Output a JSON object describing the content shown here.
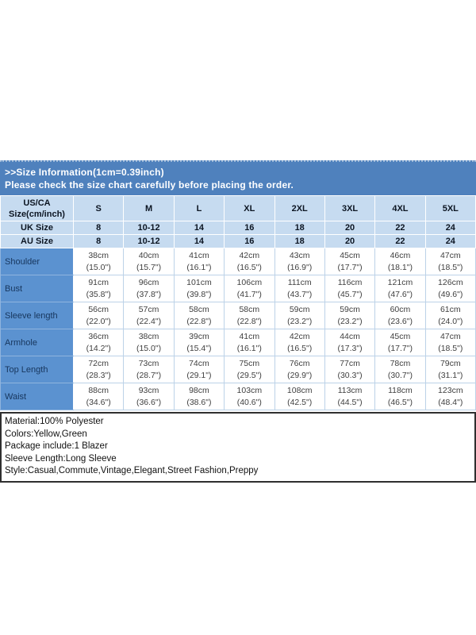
{
  "banner": {
    "title": ">>Size Information(1cm=0.39inch)",
    "subtitle": "Please check the size chart carefully before placing the order."
  },
  "size_table": {
    "corner_line1": "US/CA",
    "corner_line2": "Size(cm/inch)",
    "size_headers": [
      "S",
      "M",
      "L",
      "XL",
      "2XL",
      "3XL",
      "4XL",
      "5XL"
    ],
    "uk_row": {
      "label": "UK Size",
      "values": [
        "8",
        "10-12",
        "14",
        "16",
        "18",
        "20",
        "22",
        "24"
      ]
    },
    "au_row": {
      "label": "AU Size",
      "values": [
        "8",
        "10-12",
        "14",
        "16",
        "18",
        "20",
        "22",
        "24"
      ]
    },
    "measurement_rows": [
      {
        "label": "Shoulder",
        "cm": [
          "38cm",
          "40cm",
          "41cm",
          "42cm",
          "43cm",
          "45cm",
          "46cm",
          "47cm"
        ],
        "inch": [
          "(15.0\")",
          "(15.7\")",
          "(16.1\")",
          "(16.5\")",
          "(16.9\")",
          "(17.7\")",
          "(18.1\")",
          "(18.5\")"
        ]
      },
      {
        "label": "Bust",
        "cm": [
          "91cm",
          "96cm",
          "101cm",
          "106cm",
          "111cm",
          "116cm",
          "121cm",
          "126cm"
        ],
        "inch": [
          "(35.8\")",
          "(37.8\")",
          "(39.8\")",
          "(41.7\")",
          "(43.7\")",
          "(45.7\")",
          "(47.6\")",
          "(49.6\")"
        ]
      },
      {
        "label": "Sleeve length",
        "cm": [
          "56cm",
          "57cm",
          "58cm",
          "58cm",
          "59cm",
          "59cm",
          "60cm",
          "61cm"
        ],
        "inch": [
          "(22.0\")",
          "(22.4\")",
          "(22.8\")",
          "(22.8\")",
          "(23.2\")",
          "(23.2\")",
          "(23.6\")",
          "(24.0\")"
        ]
      },
      {
        "label": "Armhole",
        "cm": [
          "36cm",
          "38cm",
          "39cm",
          "41cm",
          "42cm",
          "44cm",
          "45cm",
          "47cm"
        ],
        "inch": [
          "(14.2\")",
          "(15.0\")",
          "(15.4\")",
          "(16.1\")",
          "(16.5\")",
          "(17.3\")",
          "(17.7\")",
          "(18.5\")"
        ]
      },
      {
        "label": "Top Length",
        "cm": [
          "72cm",
          "73cm",
          "74cm",
          "75cm",
          "76cm",
          "77cm",
          "78cm",
          "79cm"
        ],
        "inch": [
          "(28.3\")",
          "(28.7\")",
          "(29.1\")",
          "(29.5\")",
          "(29.9\")",
          "(30.3\")",
          "(30.7\")",
          "(31.1\")"
        ]
      },
      {
        "label": "Waist",
        "cm": [
          "88cm",
          "93cm",
          "98cm",
          "103cm",
          "108cm",
          "113cm",
          "118cm",
          "123cm"
        ],
        "inch": [
          "(34.6\")",
          "(36.6\")",
          "(38.6\")",
          "(40.6\")",
          "(42.5\")",
          "(44.5\")",
          "(46.5\")",
          "(48.4\")"
        ]
      }
    ]
  },
  "details": {
    "lines": [
      "Material:100% Polyester",
      "Colors:Yellow,Green",
      "Package include:1 Blazer",
      "Sleeve Length:Long Sleeve",
      "Style:Casual,Commute,Vintage,Elegant,Street Fashion,Preppy"
    ]
  },
  "colors": {
    "banner_blue": "#4f81bd",
    "header_light_blue": "#c6dbf0",
    "label_blue": "#5b92d0",
    "label_text": "#17365d",
    "body_border": "#bcd2e8",
    "details_border": "#2f2f2f"
  }
}
